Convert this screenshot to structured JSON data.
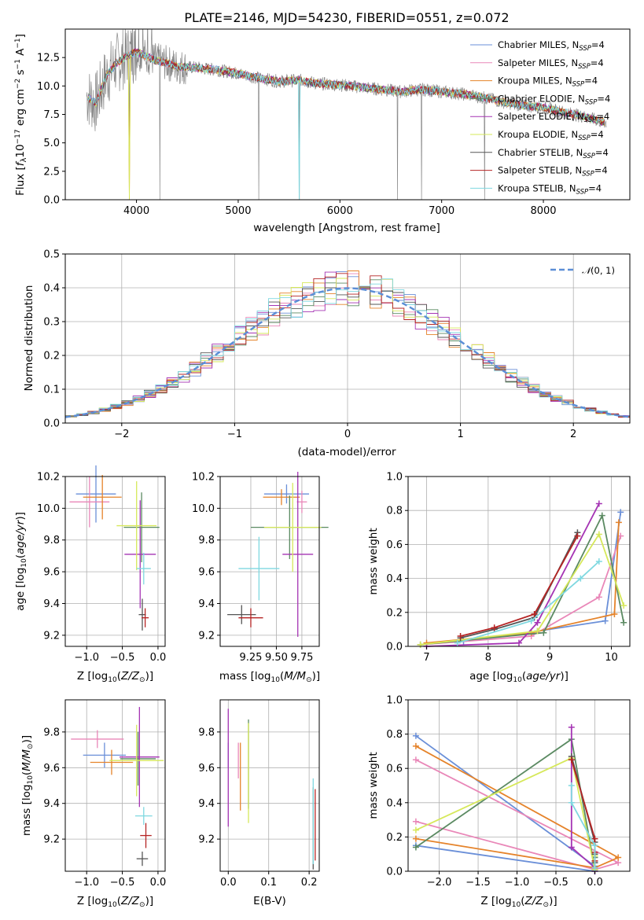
{
  "chart_data": [
    {
      "type": "line",
      "title": "PLATE=2146, MJD=54230, FIBERID=0551, z=0.072",
      "xlabel": "wavelength [Angstrom, rest frame]",
      "ylabel": "Flux [f_λ 10^-17 erg cm^-2 s^-1 A^-1]",
      "xlim": [
        3300,
        8850
      ],
      "ylim": [
        0,
        15
      ],
      "xticks": [
        "4000",
        "5000",
        "6000",
        "7000",
        "8000"
      ],
      "yticks": [
        "0.0",
        "2.5",
        "5.0",
        "7.5",
        "10.0",
        "12.5"
      ],
      "legend": "top-right",
      "series": [
        {
          "name": "Chabrier MILES, N_SSP=4",
          "color": "#6a8fd8"
        },
        {
          "name": "Salpeter MILES, N_SSP=4",
          "color": "#e987b8"
        },
        {
          "name": "Kroupa MILES, N_SSP=4",
          "color": "#e5832a"
        },
        {
          "name": "Chabrier ELODIE, N_SSP=4",
          "color": "#5b8a62"
        },
        {
          "name": "Salpeter ELODIE, N_SSP=4",
          "color": "#a534b4"
        },
        {
          "name": "Kroupa ELODIE, N_SSP=4",
          "color": "#d6e85a"
        },
        {
          "name": "Chabrier STELIB, N_SSP=4",
          "color": "#555555"
        },
        {
          "name": "Salpeter STELIB, N_SSP=4",
          "color": "#b52424"
        },
        {
          "name": "Kroupa STELIB, N_SSP=4",
          "color": "#7fd8e0"
        }
      ],
      "continuum": {
        "x": [
          3500,
          3600,
          3700,
          3800,
          3900,
          4000,
          4100,
          4200,
          4300,
          4400,
          4600,
          4800,
          5000,
          5200,
          5400,
          5600,
          5800,
          6000,
          6200,
          6400,
          6600,
          6800,
          7000,
          7200,
          7400,
          7600,
          7800,
          8000,
          8200,
          8400,
          8600
        ],
        "y": [
          9.2,
          8.5,
          10.8,
          12.0,
          12.6,
          13.0,
          12.6,
          12.2,
          12.0,
          11.7,
          11.6,
          11.4,
          11.1,
          10.7,
          10.4,
          10.5,
          10.2,
          10.1,
          9.9,
          9.7,
          9.5,
          9.7,
          9.5,
          9.3,
          9.0,
          8.6,
          8.3,
          8.1,
          7.7,
          7.3,
          6.8
        ]
      },
      "absorption_dips_x": [
        3930,
        4230,
        5200,
        5600,
        6565,
        6800,
        7420
      ]
    },
    {
      "type": "line",
      "title": "",
      "xlabel": "(data-model)/error",
      "ylabel": "Normed distribution",
      "xlim": [
        -2.5,
        2.5
      ],
      "ylim": [
        0,
        0.5
      ],
      "xticks": [
        "−2",
        "−1",
        "0",
        "1",
        "2"
      ],
      "yticks": [
        "0.0",
        "0.1",
        "0.2",
        "0.3",
        "0.4",
        "0.5"
      ],
      "legend": "top-right",
      "series": [
        {
          "name": "𝒩(0, 1)",
          "color": "#5b8ed6",
          "style": "dashed",
          "x": [
            -2.5,
            -2.0,
            -1.5,
            -1.0,
            -0.5,
            0,
            0.5,
            1.0,
            1.5,
            2.0,
            2.5
          ],
          "values": [
            0.018,
            0.054,
            0.13,
            0.242,
            0.352,
            0.399,
            0.352,
            0.242,
            0.13,
            0.054,
            0.018
          ]
        }
      ],
      "histogram_note": "nine step histograms (one per model) around the normal curve"
    },
    {
      "type": "scatter",
      "xlabel": "Z [log10(Z/Z⊙)]",
      "ylabel": "age  [log10(age/yr)]",
      "xlim": [
        -1.3,
        0.1
      ],
      "ylim": [
        9.13,
        10.2
      ],
      "xticks": [
        "−1.0",
        "−0.5",
        "0.0"
      ],
      "yticks": [
        "9.2",
        "9.4",
        "9.6",
        "9.8",
        "10.0",
        "10.2"
      ],
      "points": [
        {
          "x": -0.87,
          "xerr": 0.28,
          "y": 10.09,
          "yerr": 0.18,
          "color": "#6a8fd8"
        },
        {
          "x": -0.96,
          "xerr": 0.28,
          "y": 10.04,
          "yerr": 0.16,
          "color": "#e987b8"
        },
        {
          "x": -0.78,
          "xerr": 0.27,
          "y": 10.07,
          "yerr": 0.14,
          "color": "#e5832a"
        },
        {
          "x": -0.23,
          "xerr": 0.25,
          "y": 9.88,
          "yerr": 0.22,
          "color": "#5b8a62"
        },
        {
          "x": -0.25,
          "xerr": 0.22,
          "y": 9.71,
          "yerr": 0.34,
          "color": "#a534b4"
        },
        {
          "x": -0.3,
          "xerr": 0.28,
          "y": 9.89,
          "yerr": 0.28,
          "color": "#d6e85a"
        },
        {
          "x": -0.22,
          "xerr": 0.05,
          "y": 9.33,
          "yerr": 0.1,
          "color": "#555555"
        },
        {
          "x": -0.18,
          "xerr": 0.05,
          "y": 9.31,
          "yerr": 0.06,
          "color": "#b52424"
        },
        {
          "x": -0.2,
          "xerr": 0.1,
          "y": 9.62,
          "yerr": 0.1,
          "color": "#7fd8e0"
        }
      ]
    },
    {
      "type": "scatter",
      "xlabel": "mass [log10(M/M⊙)]",
      "ylabel": "",
      "xlim": [
        8.95,
        9.92
      ],
      "ylim": [
        9.13,
        10.2
      ],
      "xticks": [
        "9.25",
        "9.50",
        "9.75"
      ],
      "yticks": [
        "9.2",
        "9.4",
        "9.6",
        "9.8",
        "10.0",
        "10.2"
      ],
      "points": [
        {
          "x": 9.6,
          "xerr": 0.22,
          "y": 10.09,
          "yerr": 0.06,
          "color": "#6a8fd8"
        },
        {
          "x": 9.75,
          "xerr": 0.05,
          "y": 10.04,
          "yerr": 0.07,
          "color": "#e987b8"
        },
        {
          "x": 9.55,
          "xerr": 0.18,
          "y": 10.07,
          "yerr": 0.05,
          "color": "#e5832a"
        },
        {
          "x": 9.63,
          "xerr": 0.38,
          "y": 9.88,
          "yerr": 0.2,
          "color": "#5b8a62"
        },
        {
          "x": 9.71,
          "xerr": 0.15,
          "y": 9.71,
          "yerr": 0.52,
          "color": "#a534b4"
        },
        {
          "x": 9.66,
          "xerr": 0.28,
          "y": 9.88,
          "yerr": 0.28,
          "color": "#d6e85a"
        },
        {
          "x": 9.16,
          "xerr": 0.14,
          "y": 9.33,
          "yerr": 0.06,
          "color": "#555555"
        },
        {
          "x": 9.25,
          "xerr": 0.12,
          "y": 9.31,
          "yerr": 0.06,
          "color": "#b52424"
        },
        {
          "x": 9.33,
          "xerr": 0.2,
          "y": 9.62,
          "yerr": 0.2,
          "color": "#7fd8e0"
        }
      ]
    },
    {
      "type": "line",
      "xlabel": "age  [log10(age/yr)]",
      "ylabel": "mass weight",
      "xlim": [
        6.7,
        10.3
      ],
      "ylim": [
        0,
        1
      ],
      "xticks": [
        "7",
        "8",
        "9",
        "10"
      ],
      "yticks": [
        "0.0",
        "0.2",
        "0.4",
        "0.6",
        "0.8",
        "1.0"
      ],
      "series": [
        {
          "color": "#6a8fd8",
          "x": [
            7.6,
            8.8,
            9.9,
            10.15
          ],
          "values": [
            0.03,
            0.09,
            0.15,
            0.79
          ]
        },
        {
          "color": "#e987b8",
          "x": [
            6.9,
            8.7,
            9.8,
            10.15
          ],
          "values": [
            0.01,
            0.06,
            0.29,
            0.65
          ]
        },
        {
          "color": "#e5832a",
          "x": [
            7.0,
            8.7,
            10.05,
            10.12
          ],
          "values": [
            0.02,
            0.08,
            0.19,
            0.73
          ]
        },
        {
          "color": "#5b8a62",
          "x": [
            6.9,
            8.9,
            9.85,
            10.2
          ],
          "values": [
            0.01,
            0.08,
            0.77,
            0.14
          ]
        },
        {
          "color": "#a534b4",
          "x": [
            7.0,
            8.5,
            8.8,
            9.8
          ],
          "values": [
            0.0,
            0.02,
            0.14,
            0.84
          ]
        },
        {
          "color": "#d6e85a",
          "x": [
            6.9,
            8.8,
            9.8,
            10.2
          ],
          "values": [
            0.01,
            0.09,
            0.66,
            0.24
          ]
        },
        {
          "color": "#555555",
          "x": [
            7.55,
            8.1,
            8.75,
            9.45
          ],
          "values": [
            0.05,
            0.1,
            0.17,
            0.67
          ]
        },
        {
          "color": "#b52424",
          "x": [
            7.55,
            8.1,
            8.75,
            9.45
          ],
          "values": [
            0.06,
            0.11,
            0.19,
            0.65
          ]
        },
        {
          "color": "#7fd8e0",
          "x": [
            7.5,
            8.7,
            9.5,
            9.8
          ],
          "values": [
            0.02,
            0.15,
            0.4,
            0.5
          ]
        }
      ]
    },
    {
      "type": "scatter",
      "xlabel": "Z [log10(Z/Z⊙)]",
      "ylabel": "mass [log10(M/M⊙)]",
      "xlim": [
        -1.3,
        0.1
      ],
      "ylim": [
        9.02,
        9.98
      ],
      "xticks": [
        "−1.0",
        "−0.5",
        "0.0"
      ],
      "yticks": [
        "9.2",
        "9.4",
        "9.6",
        "9.8"
      ],
      "points": [
        {
          "x": -0.75,
          "xerr": 0.3,
          "y": 9.67,
          "yerr": 0.07,
          "color": "#6a8fd8"
        },
        {
          "x": -0.85,
          "xerr": 0.37,
          "y": 9.76,
          "yerr": 0.05,
          "color": "#e987b8"
        },
        {
          "x": -0.65,
          "xerr": 0.3,
          "y": 9.63,
          "yerr": 0.07,
          "color": "#e5832a"
        },
        {
          "x": -0.28,
          "xerr": 0.25,
          "y": 9.65,
          "yerr": 0.15,
          "color": "#5b8a62"
        },
        {
          "x": -0.26,
          "xerr": 0.28,
          "y": 9.66,
          "yerr": 0.28,
          "color": "#a534b4"
        },
        {
          "x": -0.3,
          "xerr": 0.38,
          "y": 9.64,
          "yerr": 0.2,
          "color": "#d6e85a"
        },
        {
          "x": -0.22,
          "xerr": 0.08,
          "y": 9.09,
          "yerr": 0.04,
          "color": "#555555"
        },
        {
          "x": -0.17,
          "xerr": 0.08,
          "y": 9.22,
          "yerr": 0.07,
          "color": "#b52424"
        },
        {
          "x": -0.2,
          "xerr": 0.12,
          "y": 9.33,
          "yerr": 0.05,
          "color": "#7fd8e0"
        }
      ]
    },
    {
      "type": "scatter",
      "xlabel": "E(B-V)",
      "ylabel": "",
      "xlim": [
        -0.02,
        0.225
      ],
      "ylim": [
        9.02,
        9.98
      ],
      "xticks": [
        "0.0",
        "0.1",
        "0.2"
      ],
      "yticks": [
        "9.2",
        "9.4",
        "9.6",
        "9.8"
      ],
      "points": [
        {
          "x": 0.0,
          "y": 9.67,
          "yerr": 0.07,
          "color": "#6a8fd8"
        },
        {
          "x": 0.025,
          "y": 9.64,
          "yerr": 0.1,
          "color": "#e987b8"
        },
        {
          "x": 0.03,
          "y": 9.55,
          "yerr": 0.19,
          "color": "#e5832a"
        },
        {
          "x": 0.05,
          "y": 9.62,
          "yerr": 0.25,
          "color": "#5b8a62"
        },
        {
          "x": 0.0,
          "y": 9.6,
          "yerr": 0.33,
          "color": "#a534b4"
        },
        {
          "x": 0.05,
          "y": 9.57,
          "yerr": 0.28,
          "color": "#d6e85a"
        },
        {
          "x": 0.21,
          "y": 9.26,
          "yerr": 0.23,
          "color": "#555555"
        },
        {
          "x": 0.215,
          "y": 9.28,
          "yerr": 0.2,
          "color": "#b52424"
        },
        {
          "x": 0.21,
          "y": 9.3,
          "yerr": 0.24,
          "color": "#7fd8e0"
        }
      ]
    },
    {
      "type": "line",
      "xlabel": "Z [log10(Z/Z⊙)]",
      "ylabel": "mass weight",
      "xlim": [
        -2.4,
        0.45
      ],
      "ylim": [
        0,
        1
      ],
      "xticks": [
        "−2.0",
        "−1.5",
        "−1.0",
        "−0.5",
        "0.0"
      ],
      "yticks": [
        "0.0",
        "0.2",
        "0.4",
        "0.6",
        "0.8",
        "1.0"
      ],
      "series": [
        {
          "color": "#6a8fd8",
          "x": [
            -2.3,
            0.0,
            0.0,
            -2.3
          ],
          "values": [
            0.15,
            0.0,
            0.03,
            0.79
          ]
        },
        {
          "color": "#e987b8",
          "x": [
            -2.3,
            0.0,
            0.3,
            -2.3
          ],
          "values": [
            0.29,
            0.01,
            0.05,
            0.65
          ]
        },
        {
          "color": "#e5832a",
          "x": [
            -2.3,
            0.0,
            0.3,
            -2.3
          ],
          "values": [
            0.19,
            0.02,
            0.08,
            0.73
          ]
        },
        {
          "color": "#5b8a62",
          "x": [
            -2.3,
            -0.3,
            0.0,
            0.0
          ],
          "values": [
            0.14,
            0.77,
            0.01,
            0.08
          ]
        },
        {
          "color": "#a534b4",
          "x": [
            -0.3,
            -0.3,
            0.0,
            0.0
          ],
          "values": [
            0.84,
            0.14,
            0.02,
            0.0
          ]
        },
        {
          "color": "#d6e85a",
          "x": [
            -2.3,
            -0.3,
            0.0,
            0.0
          ],
          "values": [
            0.24,
            0.66,
            0.01,
            0.09
          ]
        },
        {
          "color": "#555555",
          "x": [
            -0.3,
            0.0,
            0.0,
            0.0
          ],
          "values": [
            0.67,
            0.17,
            0.1,
            0.05
          ]
        },
        {
          "color": "#b52424",
          "x": [
            -0.3,
            0.0,
            0.0,
            0.0
          ],
          "values": [
            0.65,
            0.19,
            0.11,
            0.06
          ]
        },
        {
          "color": "#7fd8e0",
          "x": [
            -0.3,
            -0.3,
            0.0,
            0.0
          ],
          "values": [
            0.5,
            0.4,
            0.15,
            0.02
          ]
        }
      ]
    }
  ]
}
